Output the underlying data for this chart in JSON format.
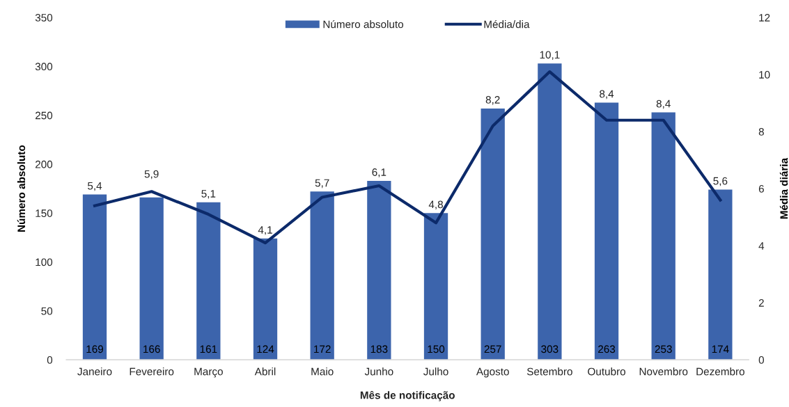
{
  "chart_data": {
    "type": "bar",
    "xlabel": "Mês de notificação",
    "ylabel": "Número absoluto",
    "y2label": "Média diária",
    "categories": [
      "Janeiro",
      "Fevereiro",
      "Março",
      "Abril",
      "Maio",
      "Junho",
      "Julho",
      "Agosto",
      "Setembro",
      "Outubro",
      "Novembro",
      "Dezembro"
    ],
    "series": [
      {
        "name": "Número absoluto",
        "color": "#3c64ac",
        "values": [
          169,
          166,
          161,
          124,
          172,
          183,
          150,
          257,
          303,
          263,
          253,
          174
        ],
        "value_labels": [
          "169",
          "166",
          "161",
          "124",
          "172",
          "183",
          "150",
          "257",
          "303",
          "263",
          "253",
          "174"
        ]
      },
      {
        "name": "Média/dia",
        "type": "line",
        "axis": "y2",
        "color": "#0c2a6a",
        "values": [
          5.4,
          5.9,
          5.1,
          4.1,
          5.7,
          6.1,
          4.8,
          8.2,
          10.1,
          8.4,
          8.4,
          5.6
        ],
        "value_labels": [
          "5,4",
          "5,9",
          "5,1",
          "4,1",
          "5,7",
          "6,1",
          "4,8",
          "8,2",
          "10,1",
          "8,4",
          "8,4",
          "5,6"
        ]
      }
    ],
    "ylim": [
      0,
      350
    ],
    "yticks": [
      0,
      50,
      100,
      150,
      200,
      250,
      300,
      350
    ],
    "y2lim": [
      0,
      12
    ],
    "y2ticks": [
      0,
      2,
      4,
      6,
      8,
      10,
      12
    ],
    "grid": false,
    "legend": "top",
    "marker": "none",
    "line_style": "solid"
  }
}
